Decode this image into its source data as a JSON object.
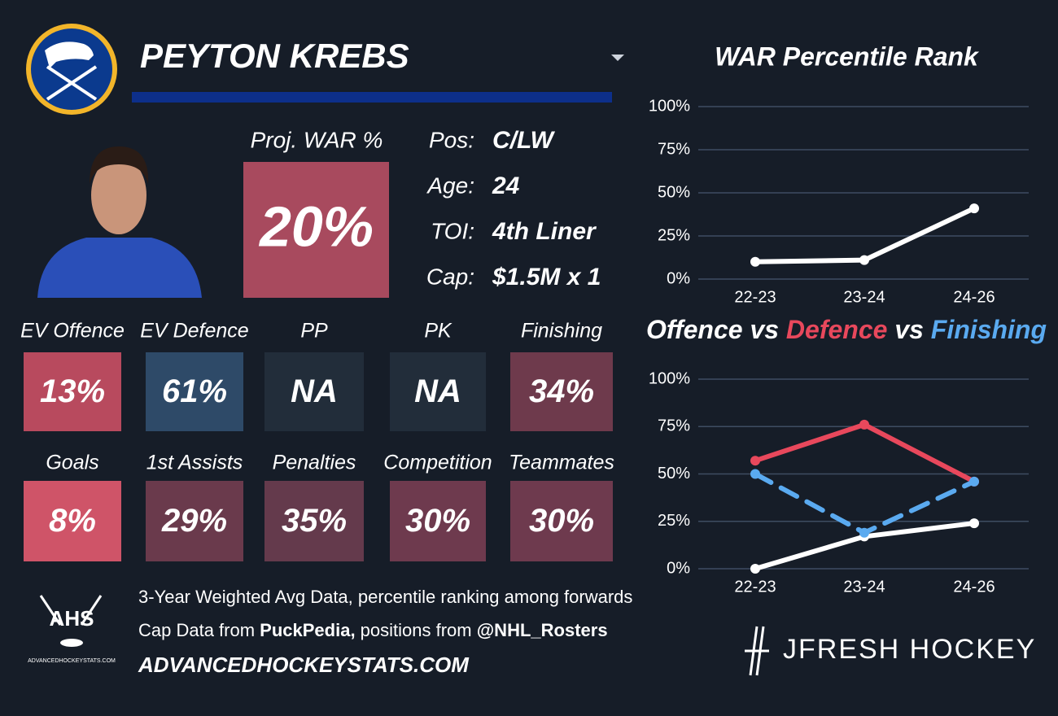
{
  "player": {
    "name": "PEYTON KREBS"
  },
  "proj_war": {
    "label": "Proj. WAR %",
    "value": "20%",
    "color": "#a84a5e"
  },
  "bio": [
    {
      "label": "Pos:",
      "value": "C/LW"
    },
    {
      "label": "Age:",
      "value": "24"
    },
    {
      "label": "TOI:",
      "value": "4th Liner"
    },
    {
      "label": "Cap:",
      "value": "$1.5M x 1"
    }
  ],
  "stats": [
    {
      "label": "EV Offence",
      "value": "13%",
      "color": "#b84a5e"
    },
    {
      "label": "EV Defence",
      "value": "61%",
      "color": "#2e4a68"
    },
    {
      "label": "PP",
      "value": "NA",
      "color": "#222d3a"
    },
    {
      "label": "PK",
      "value": "NA",
      "color": "#222d3a"
    },
    {
      "label": "Finishing",
      "value": "34%",
      "color": "#6e3a4c"
    },
    {
      "label": "Goals",
      "value": "8%",
      "color": "#cf5468"
    },
    {
      "label": "1st Assists",
      "value": "29%",
      "color": "#6a3a4c"
    },
    {
      "label": "Penalties",
      "value": "35%",
      "color": "#643a4c"
    },
    {
      "label": "Competition",
      "value": "30%",
      "color": "#6e3a4e"
    },
    {
      "label": "Teammates",
      "value": "30%",
      "color": "#6e3a4e"
    }
  ],
  "footer": {
    "line1": "3-Year Weighted Avg Data, percentile ranking among forwards",
    "line2_a": "Cap Data from ",
    "line2_b": "PuckPedia,",
    "line2_c": " positions from ",
    "line2_d": "@NHL_Rosters",
    "site": "ADVANCEDHOCKEYSTATS.COM",
    "logo_text": "AHS",
    "logo_sub": "ADVANCEDHOCKEYSTATS.COM",
    "brand": "JFRESH HOCKEY"
  },
  "chart_data": [
    {
      "type": "line",
      "title": "WAR Percentile Rank",
      "categories": [
        "22-23",
        "23-24",
        "24-26"
      ],
      "values": [
        10,
        11,
        41
      ],
      "color": "#ffffff",
      "ylim": [
        0,
        100
      ],
      "yticks": [
        {
          "value": 0,
          "label": "0%"
        },
        {
          "value": 25,
          "label": "25%"
        },
        {
          "value": 50,
          "label": "50%"
        },
        {
          "value": 75,
          "label": "75%"
        },
        {
          "value": 100,
          "label": "100%"
        }
      ],
      "grid": true
    },
    {
      "type": "line",
      "title_sep": "vs",
      "categories": [
        "22-23",
        "23-24",
        "24-26"
      ],
      "series": [
        {
          "name": "Offence",
          "color": "#ffffff",
          "values": [
            0,
            17,
            24
          ]
        },
        {
          "name": "Defence",
          "color": "#e8485c",
          "values": [
            57,
            76,
            46
          ]
        },
        {
          "name": "Finishing",
          "color": "#5aaaf0",
          "values": [
            50,
            19,
            46
          ],
          "line_style": "dashed"
        }
      ],
      "ylim": [
        0,
        100
      ],
      "yticks": [
        {
          "value": 0,
          "label": "0%"
        },
        {
          "value": 25,
          "label": "25%"
        },
        {
          "value": 50,
          "label": "50%"
        },
        {
          "value": 75,
          "label": "75%"
        },
        {
          "value": 100,
          "label": "100%"
        }
      ],
      "grid": true
    }
  ]
}
